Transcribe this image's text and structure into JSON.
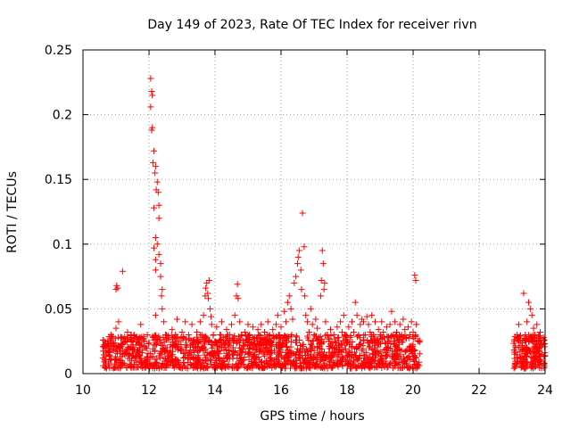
{
  "chart_data": {
    "type": "scatter",
    "title": "Day 149 of 2023, Rate Of TEC Index for receiver rivn",
    "xlabel": "GPS time / hours",
    "ylabel": "ROTI / TECUs",
    "xlim": [
      10,
      24
    ],
    "ylim": [
      0,
      0.25
    ],
    "xticks": [
      10,
      12,
      14,
      16,
      18,
      20,
      22,
      24
    ],
    "xtick_labels": [
      "10",
      "12",
      "14",
      "16",
      "18",
      "20",
      "22",
      "24"
    ],
    "yticks": [
      0,
      0.05,
      0.1,
      0.15,
      0.2,
      0.25
    ],
    "ytick_labels": [
      "0",
      "0.05",
      "0.1",
      "0.15",
      "0.2",
      "0.25"
    ],
    "grid": true,
    "marker": "+",
    "color": "#ff0000",
    "series": [
      {
        "name": "ROTI",
        "points": [
          [
            10.6,
            0.012
          ],
          [
            10.65,
            0.02
          ],
          [
            10.7,
            0.016
          ],
          [
            10.75,
            0.025
          ],
          [
            10.8,
            0.014
          ],
          [
            10.85,
            0.03
          ],
          [
            10.9,
            0.018
          ],
          [
            10.95,
            0.022
          ],
          [
            11.0,
            0.035
          ],
          [
            11.0,
            0.065
          ],
          [
            11.02,
            0.068
          ],
          [
            11.05,
            0.066
          ],
          [
            11.08,
            0.04
          ],
          [
            11.1,
            0.02
          ],
          [
            11.15,
            0.028
          ],
          [
            11.2,
            0.079
          ],
          [
            11.2,
            0.015
          ],
          [
            11.25,
            0.024
          ],
          [
            11.3,
            0.018
          ],
          [
            11.35,
            0.032
          ],
          [
            11.4,
            0.02
          ],
          [
            11.45,
            0.026
          ],
          [
            11.5,
            0.014
          ],
          [
            11.55,
            0.03
          ],
          [
            11.6,
            0.022
          ],
          [
            11.65,
            0.018
          ],
          [
            11.7,
            0.028
          ],
          [
            11.75,
            0.038
          ],
          [
            11.8,
            0.016
          ],
          [
            11.85,
            0.025
          ],
          [
            11.9,
            0.02
          ],
          [
            11.95,
            0.03
          ],
          [
            12.0,
            0.024
          ],
          [
            12.05,
            0.228
          ],
          [
            12.08,
            0.218
          ],
          [
            12.1,
            0.215
          ],
          [
            12.05,
            0.206
          ],
          [
            12.1,
            0.19
          ],
          [
            12.08,
            0.188
          ],
          [
            12.15,
            0.172
          ],
          [
            12.12,
            0.163
          ],
          [
            12.2,
            0.16
          ],
          [
            12.18,
            0.155
          ],
          [
            12.25,
            0.148
          ],
          [
            12.22,
            0.142
          ],
          [
            12.28,
            0.14
          ],
          [
            12.15,
            0.128
          ],
          [
            12.3,
            0.13
          ],
          [
            12.3,
            0.12
          ],
          [
            12.2,
            0.105
          ],
          [
            12.25,
            0.1
          ],
          [
            12.15,
            0.097
          ],
          [
            12.3,
            0.092
          ],
          [
            12.2,
            0.088
          ],
          [
            12.35,
            0.085
          ],
          [
            12.2,
            0.08
          ],
          [
            12.35,
            0.075
          ],
          [
            12.4,
            0.065
          ],
          [
            12.38,
            0.06
          ],
          [
            12.4,
            0.05
          ],
          [
            12.2,
            0.045
          ],
          [
            12.45,
            0.04
          ],
          [
            12.5,
            0.03
          ],
          [
            12.55,
            0.02
          ],
          [
            12.6,
            0.028
          ],
          [
            12.65,
            0.018
          ],
          [
            12.7,
            0.034
          ],
          [
            12.75,
            0.022
          ],
          [
            12.8,
            0.03
          ],
          [
            12.85,
            0.042
          ],
          [
            12.9,
            0.025
          ],
          [
            12.95,
            0.018
          ],
          [
            13.0,
            0.032
          ],
          [
            13.05,
            0.028
          ],
          [
            13.1,
            0.04
          ],
          [
            13.15,
            0.022
          ],
          [
            13.2,
            0.03
          ],
          [
            13.25,
            0.018
          ],
          [
            13.3,
            0.038
          ],
          [
            13.35,
            0.026
          ],
          [
            13.4,
            0.02
          ],
          [
            13.45,
            0.032
          ],
          [
            13.5,
            0.024
          ],
          [
            13.55,
            0.04
          ],
          [
            13.6,
            0.03
          ],
          [
            13.65,
            0.045
          ],
          [
            13.7,
            0.06
          ],
          [
            13.72,
            0.066
          ],
          [
            13.75,
            0.07
          ],
          [
            13.78,
            0.062
          ],
          [
            13.8,
            0.058
          ],
          [
            13.82,
            0.072
          ],
          [
            13.85,
            0.05
          ],
          [
            13.88,
            0.044
          ],
          [
            13.9,
            0.038
          ],
          [
            13.95,
            0.03
          ],
          [
            14.0,
            0.025
          ],
          [
            14.05,
            0.036
          ],
          [
            14.1,
            0.02
          ],
          [
            14.15,
            0.03
          ],
          [
            14.2,
            0.04
          ],
          [
            14.25,
            0.028
          ],
          [
            14.3,
            0.022
          ],
          [
            14.35,
            0.034
          ],
          [
            14.4,
            0.026
          ],
          [
            14.45,
            0.03
          ],
          [
            14.5,
            0.038
          ],
          [
            14.55,
            0.024
          ],
          [
            14.6,
            0.045
          ],
          [
            14.65,
            0.06
          ],
          [
            14.68,
            0.069
          ],
          [
            14.7,
            0.058
          ],
          [
            14.75,
            0.04
          ],
          [
            14.8,
            0.03
          ],
          [
            14.85,
            0.022
          ],
          [
            14.9,
            0.032
          ],
          [
            14.95,
            0.026
          ],
          [
            15.0,
            0.038
          ],
          [
            15.05,
            0.03
          ],
          [
            15.1,
            0.024
          ],
          [
            15.15,
            0.036
          ],
          [
            15.2,
            0.028
          ],
          [
            15.25,
            0.02
          ],
          [
            15.3,
            0.034
          ],
          [
            15.35,
            0.03
          ],
          [
            15.4,
            0.038
          ],
          [
            15.45,
            0.024
          ],
          [
            15.5,
            0.032
          ],
          [
            15.55,
            0.026
          ],
          [
            15.6,
            0.04
          ],
          [
            15.65,
            0.03
          ],
          [
            15.7,
            0.022
          ],
          [
            15.75,
            0.034
          ],
          [
            15.8,
            0.028
          ],
          [
            15.85,
            0.038
          ],
          [
            15.9,
            0.045
          ],
          [
            15.95,
            0.03
          ],
          [
            16.0,
            0.036
          ],
          [
            16.05,
            0.028
          ],
          [
            16.1,
            0.048
          ],
          [
            16.15,
            0.04
          ],
          [
            16.2,
            0.055
          ],
          [
            16.25,
            0.06
          ],
          [
            16.3,
            0.05
          ],
          [
            16.35,
            0.042
          ],
          [
            16.4,
            0.07
          ],
          [
            16.45,
            0.075
          ],
          [
            16.5,
            0.085
          ],
          [
            16.52,
            0.09
          ],
          [
            16.55,
            0.095
          ],
          [
            16.6,
            0.08
          ],
          [
            16.62,
            0.065
          ],
          [
            16.65,
            0.124
          ],
          [
            16.7,
            0.098
          ],
          [
            16.72,
            0.06
          ],
          [
            16.75,
            0.045
          ],
          [
            16.8,
            0.04
          ],
          [
            16.85,
            0.032
          ],
          [
            16.9,
            0.05
          ],
          [
            16.95,
            0.038
          ],
          [
            17.0,
            0.03
          ],
          [
            17.05,
            0.042
          ],
          [
            17.1,
            0.035
          ],
          [
            17.15,
            0.028
          ],
          [
            17.2,
            0.06
          ],
          [
            17.22,
            0.072
          ],
          [
            17.25,
            0.095
          ],
          [
            17.28,
            0.085
          ],
          [
            17.3,
            0.065
          ],
          [
            17.32,
            0.07
          ],
          [
            17.35,
            0.04
          ],
          [
            17.4,
            0.03
          ],
          [
            17.45,
            0.025
          ],
          [
            17.5,
            0.034
          ],
          [
            17.55,
            0.02
          ],
          [
            17.6,
            0.03
          ],
          [
            17.65,
            0.024
          ],
          [
            17.7,
            0.036
          ],
          [
            17.75,
            0.028
          ],
          [
            17.8,
            0.04
          ],
          [
            17.85,
            0.032
          ],
          [
            17.9,
            0.045
          ],
          [
            17.95,
            0.03
          ],
          [
            18.0,
            0.024
          ],
          [
            18.05,
            0.036
          ],
          [
            18.1,
            0.028
          ],
          [
            18.15,
            0.04
          ],
          [
            18.2,
            0.032
          ],
          [
            18.25,
            0.055
          ],
          [
            18.3,
            0.045
          ],
          [
            18.35,
            0.03
          ],
          [
            18.4,
            0.038
          ],
          [
            18.45,
            0.042
          ],
          [
            18.5,
            0.04
          ],
          [
            18.55,
            0.03
          ],
          [
            18.6,
            0.044
          ],
          [
            18.65,
            0.038
          ],
          [
            18.7,
            0.032
          ],
          [
            18.75,
            0.045
          ],
          [
            18.8,
            0.03
          ],
          [
            18.85,
            0.04
          ],
          [
            18.9,
            0.026
          ],
          [
            18.95,
            0.034
          ],
          [
            19.0,
            0.03
          ],
          [
            19.05,
            0.04
          ],
          [
            19.1,
            0.032
          ],
          [
            19.15,
            0.024
          ],
          [
            19.2,
            0.036
          ],
          [
            19.25,
            0.028
          ],
          [
            19.3,
            0.038
          ],
          [
            19.35,
            0.048
          ],
          [
            19.4,
            0.03
          ],
          [
            19.45,
            0.04
          ],
          [
            19.5,
            0.032
          ],
          [
            19.55,
            0.026
          ],
          [
            19.6,
            0.038
          ],
          [
            19.65,
            0.03
          ],
          [
            19.7,
            0.042
          ],
          [
            19.75,
            0.034
          ],
          [
            19.8,
            0.028
          ],
          [
            19.85,
            0.036
          ],
          [
            19.9,
            0.03
          ],
          [
            19.95,
            0.04
          ],
          [
            20.0,
            0.032
          ],
          [
            20.05,
            0.076
          ],
          [
            20.08,
            0.072
          ],
          [
            20.1,
            0.038
          ],
          [
            20.15,
            0.025
          ],
          [
            23.1,
            0.02
          ],
          [
            23.15,
            0.03
          ],
          [
            23.2,
            0.038
          ],
          [
            23.25,
            0.025
          ],
          [
            23.3,
            0.018
          ],
          [
            23.35,
            0.062
          ],
          [
            23.4,
            0.03
          ],
          [
            23.45,
            0.04
          ],
          [
            23.5,
            0.055
          ],
          [
            23.55,
            0.05
          ],
          [
            23.6,
            0.045
          ],
          [
            23.65,
            0.035
          ],
          [
            23.7,
            0.03
          ],
          [
            23.75,
            0.038
          ],
          [
            23.8,
            0.026
          ],
          [
            23.85,
            0.032
          ],
          [
            23.9,
            0.022
          ],
          [
            23.95,
            0.028
          ]
        ]
      }
    ],
    "bands": [
      {
        "x_start": 10.6,
        "x_end": 20.2,
        "y_low": 0.004,
        "y_high": 0.03,
        "count": 1500
      },
      {
        "x_start": 23.05,
        "x_end": 24.0,
        "y_low": 0.004,
        "y_high": 0.03,
        "count": 200
      }
    ]
  }
}
